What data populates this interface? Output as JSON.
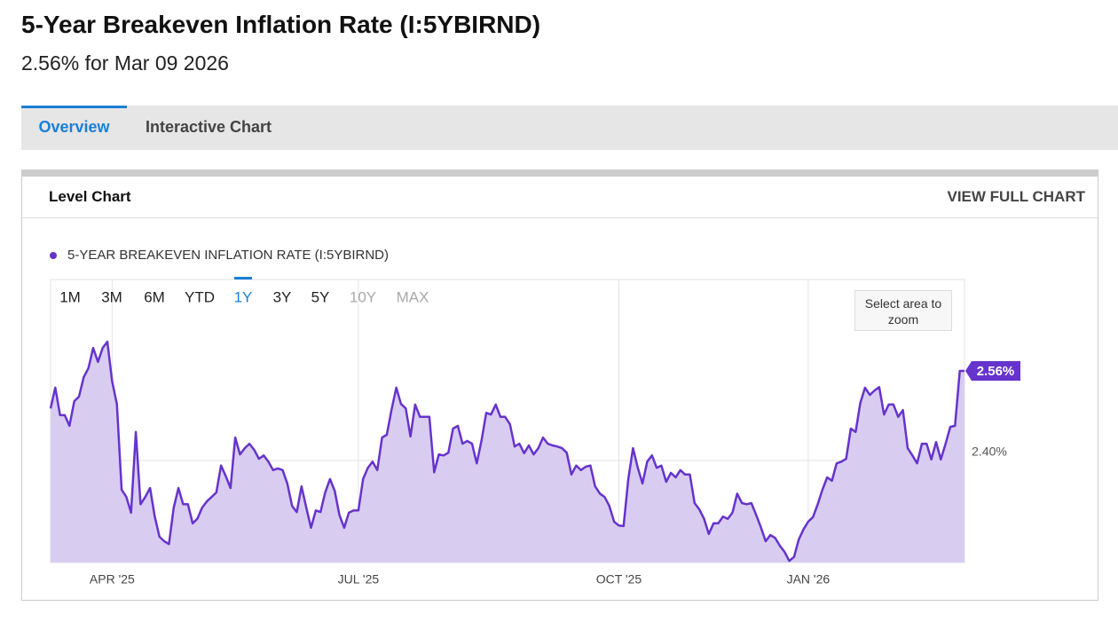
{
  "header": {
    "title": "5-Year Breakeven Inflation Rate (I:5YBIRND)",
    "subtitle": "2.56% for Mar 09 2026"
  },
  "tabs": [
    "Overview",
    "Interactive Chart"
  ],
  "panel": {
    "title": "Level Chart",
    "action": "VIEW FULL CHART"
  },
  "range_buttons": [
    "1M",
    "3M",
    "6M",
    "YTD",
    "1Y",
    "3Y",
    "5Y",
    "10Y",
    "MAX"
  ],
  "zoom_hint": "Select area to zoom",
  "chart_data": {
    "type": "area",
    "series": [
      {
        "name": "5-YEAR BREAKEVEN INFLATION RATE (I:5YBIRND)",
        "color": "#6633cc",
        "values": [
          2.493,
          2.53,
          2.481,
          2.481,
          2.462,
          2.506,
          2.514,
          2.549,
          2.565,
          2.601,
          2.576,
          2.601,
          2.612,
          2.541,
          2.501,
          2.348,
          2.335,
          2.307,
          2.451,
          2.322,
          2.335,
          2.351,
          2.3,
          2.264,
          2.256,
          2.251,
          2.316,
          2.351,
          2.322,
          2.322,
          2.288,
          2.296,
          2.316,
          2.327,
          2.335,
          2.343,
          2.391,
          2.372,
          2.351,
          2.441,
          2.411,
          2.422,
          2.43,
          2.419,
          2.403,
          2.409,
          2.398,
          2.383,
          2.386,
          2.383,
          2.359,
          2.319,
          2.308,
          2.354,
          2.316,
          2.28,
          2.311,
          2.308,
          2.343,
          2.367,
          2.346,
          2.303,
          2.28,
          2.307,
          2.311,
          2.311,
          2.367,
          2.387,
          2.398,
          2.383,
          2.441,
          2.446,
          2.49,
          2.53,
          2.501,
          2.493,
          2.443,
          2.5,
          2.478,
          2.478,
          2.478,
          2.379,
          2.411,
          2.409,
          2.414,
          2.457,
          2.462,
          2.43,
          2.435,
          2.43,
          2.395,
          2.435,
          2.485,
          2.482,
          2.5,
          2.478,
          2.478,
          2.465,
          2.425,
          2.43,
          2.413,
          2.427,
          2.411,
          2.422,
          2.441,
          2.43,
          2.427,
          2.425,
          2.422,
          2.414,
          2.375,
          2.391,
          2.383,
          2.389,
          2.391,
          2.354,
          2.341,
          2.335,
          2.319,
          2.291,
          2.284,
          2.283,
          2.367,
          2.422,
          2.387,
          2.359,
          2.398,
          2.409,
          2.387,
          2.391,
          2.362,
          2.378,
          2.37,
          2.383,
          2.375,
          2.375,
          2.324,
          2.313,
          2.296,
          2.269,
          2.288,
          2.288,
          2.3,
          2.296,
          2.307,
          2.341,
          2.324,
          2.322,
          2.324,
          2.303,
          2.281,
          2.256,
          2.267,
          2.262,
          2.248,
          2.237,
          2.221,
          2.228,
          2.259,
          2.277,
          2.291,
          2.299,
          2.322,
          2.348,
          2.37,
          2.364,
          2.395,
          2.398,
          2.403,
          2.457,
          2.451,
          2.503,
          2.53,
          2.517,
          2.525,
          2.531,
          2.482,
          2.5,
          2.5,
          2.478,
          2.49,
          2.422,
          2.409,
          2.395,
          2.43,
          2.43,
          2.402,
          2.433,
          2.402,
          2.43,
          2.46,
          2.462,
          2.56,
          2.56
        ],
        "value_labels": [
          null,
          null,
          null,
          null,
          null,
          null,
          null,
          null,
          null,
          null,
          null,
          null,
          null,
          null,
          null,
          null,
          null,
          null,
          null,
          null,
          null,
          null,
          null,
          null,
          null,
          null,
          null,
          null,
          null,
          null,
          null,
          null,
          null,
          null,
          null,
          null,
          null,
          null,
          null,
          null,
          null,
          null,
          null,
          null,
          null,
          null,
          null,
          null,
          null,
          null,
          null,
          null,
          null,
          null,
          null,
          null,
          null,
          null,
          null,
          null,
          null,
          null,
          null,
          null,
          null,
          null,
          null,
          null,
          null,
          null,
          null,
          null,
          null,
          null,
          null,
          null,
          null,
          null,
          null,
          null,
          null,
          null,
          null,
          null,
          null,
          null,
          null,
          null,
          null,
          null,
          null,
          null,
          null,
          null,
          null,
          null,
          null,
          null,
          null,
          null,
          null,
          null,
          null,
          null,
          null,
          null,
          null,
          null,
          null,
          null,
          null,
          null,
          null,
          null,
          null,
          null,
          null,
          null,
          null,
          null,
          null,
          null,
          null,
          null,
          null,
          null,
          null,
          null,
          null,
          null,
          null,
          null,
          null,
          null,
          null,
          null,
          null,
          null,
          null,
          null,
          null,
          null,
          null,
          null,
          null,
          null,
          null,
          null,
          null,
          null,
          null,
          null,
          null,
          null,
          null,
          null,
          null,
          null,
          null,
          null,
          null,
          null,
          null,
          null,
          null,
          null,
          null,
          null,
          null,
          null,
          null,
          null,
          null,
          null,
          null,
          null,
          null,
          null,
          null,
          null,
          null,
          null,
          null,
          null,
          null,
          null,
          null,
          null,
          null,
          null,
          null,
          null,
          null,
          "2.56%"
        ]
      }
    ],
    "fill_color": "#d8cdf1",
    "ylim": [
      2.218,
      2.723
    ],
    "yticks": [
      {
        "value": 2.4,
        "label": "2.40%"
      }
    ],
    "xticks": [
      {
        "value": 13,
        "label": "APR '25"
      },
      {
        "value": 65,
        "label": "JUL '25"
      },
      {
        "value": 120,
        "label": "OCT '25"
      },
      {
        "value": 160,
        "label": "JAN '26"
      }
    ],
    "grid": true
  }
}
